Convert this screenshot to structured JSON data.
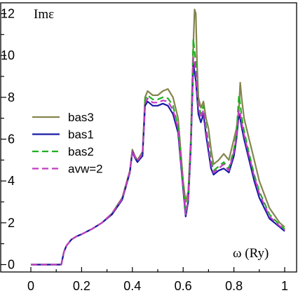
{
  "chart_data": {
    "type": "line",
    "title": "",
    "ylabel": "Imε",
    "xlabel": "ω (Ry)",
    "xlim": [
      0,
      1
    ],
    "ylim": [
      0,
      12
    ],
    "xticks": [
      "0",
      "0.2",
      "0.4",
      "0.6",
      "0.8",
      "1"
    ],
    "yticks": [
      "0",
      "2",
      "4",
      "6",
      "8",
      "10",
      "12"
    ],
    "grid": false,
    "legend_position": "left-middle",
    "series": [
      {
        "name": "bas3",
        "color": "#84844e",
        "dash": "solid",
        "x": [
          0.0,
          0.12,
          0.13,
          0.14,
          0.16,
          0.18,
          0.2,
          0.24,
          0.28,
          0.32,
          0.36,
          0.39,
          0.4,
          0.41,
          0.42,
          0.44,
          0.45,
          0.46,
          0.48,
          0.5,
          0.52,
          0.54,
          0.56,
          0.58,
          0.6,
          0.61,
          0.62,
          0.63,
          0.64,
          0.645,
          0.65,
          0.655,
          0.66,
          0.67,
          0.68,
          0.69,
          0.7,
          0.71,
          0.72,
          0.74,
          0.76,
          0.78,
          0.8,
          0.81,
          0.82,
          0.825,
          0.83,
          0.84,
          0.86,
          0.88,
          0.9,
          0.94,
          0.98,
          1.0
        ],
        "y": [
          0.0,
          0.0,
          0.6,
          0.9,
          1.2,
          1.35,
          1.45,
          1.7,
          2.0,
          2.45,
          3.2,
          4.5,
          5.5,
          5.2,
          5.0,
          5.4,
          8.0,
          8.3,
          8.1,
          8.1,
          8.3,
          8.4,
          8.0,
          7.0,
          4.0,
          3.0,
          3.5,
          6.0,
          10.5,
          12.2,
          12.0,
          9.5,
          8.0,
          7.5,
          7.8,
          7.0,
          6.5,
          5.5,
          4.8,
          5.0,
          5.3,
          5.0,
          6.0,
          6.5,
          7.5,
          8.7,
          8.0,
          7.0,
          6.0,
          5.0,
          4.0,
          2.7,
          2.0,
          1.8
        ]
      },
      {
        "name": "bas1",
        "color": "#1a1aa6",
        "dash": "solid",
        "x": [
          0.0,
          0.12,
          0.13,
          0.14,
          0.16,
          0.18,
          0.2,
          0.24,
          0.28,
          0.32,
          0.36,
          0.39,
          0.4,
          0.41,
          0.42,
          0.44,
          0.45,
          0.46,
          0.48,
          0.5,
          0.52,
          0.54,
          0.56,
          0.58,
          0.6,
          0.61,
          0.62,
          0.63,
          0.64,
          0.645,
          0.65,
          0.655,
          0.66,
          0.67,
          0.68,
          0.69,
          0.7,
          0.71,
          0.72,
          0.74,
          0.76,
          0.78,
          0.8,
          0.81,
          0.82,
          0.825,
          0.83,
          0.84,
          0.86,
          0.88,
          0.9,
          0.94,
          0.98,
          1.0
        ],
        "y": [
          0.0,
          0.0,
          0.6,
          0.9,
          1.2,
          1.35,
          1.45,
          1.7,
          2.0,
          2.4,
          3.1,
          4.4,
          5.4,
          5.1,
          4.9,
          5.2,
          7.6,
          7.8,
          7.6,
          7.6,
          7.7,
          7.6,
          7.2,
          6.3,
          3.6,
          2.3,
          3.0,
          5.5,
          9.6,
          9.2,
          8.8,
          8.0,
          7.2,
          6.8,
          7.2,
          6.2,
          5.4,
          4.6,
          4.3,
          4.5,
          4.6,
          4.4,
          5.2,
          6.0,
          7.2,
          7.0,
          6.6,
          6.0,
          5.0,
          4.0,
          3.2,
          2.2,
          1.8,
          1.6
        ]
      },
      {
        "name": "bas2",
        "color": "#1fb01f",
        "dash": "9,5",
        "x": [
          0.0,
          0.12,
          0.13,
          0.14,
          0.16,
          0.18,
          0.2,
          0.24,
          0.28,
          0.32,
          0.36,
          0.39,
          0.4,
          0.41,
          0.42,
          0.44,
          0.45,
          0.46,
          0.48,
          0.5,
          0.52,
          0.54,
          0.56,
          0.58,
          0.6,
          0.61,
          0.62,
          0.63,
          0.64,
          0.645,
          0.65,
          0.655,
          0.66,
          0.67,
          0.68,
          0.69,
          0.7,
          0.71,
          0.72,
          0.74,
          0.76,
          0.78,
          0.8,
          0.81,
          0.82,
          0.825,
          0.83,
          0.84,
          0.86,
          0.88,
          0.9,
          0.94,
          0.98,
          1.0
        ],
        "y": [
          0.0,
          0.0,
          0.6,
          0.9,
          1.2,
          1.35,
          1.45,
          1.7,
          2.0,
          2.45,
          3.15,
          4.45,
          5.45,
          5.15,
          4.95,
          5.3,
          7.9,
          8.1,
          7.9,
          7.9,
          8.0,
          7.95,
          7.6,
          6.6,
          3.8,
          2.5,
          3.2,
          5.8,
          10.8,
          10.2,
          9.6,
          8.6,
          7.7,
          7.2,
          7.6,
          6.6,
          5.8,
          5.0,
          4.5,
          4.7,
          4.9,
          4.6,
          5.5,
          6.3,
          8.1,
          7.7,
          7.1,
          6.4,
          5.3,
          4.3,
          3.5,
          2.4,
          1.9,
          1.7
        ]
      },
      {
        "name": "avw=2",
        "color": "#c23bc2",
        "dash": "9,5",
        "x": [
          0.0,
          0.12,
          0.13,
          0.14,
          0.16,
          0.18,
          0.2,
          0.24,
          0.28,
          0.32,
          0.36,
          0.39,
          0.4,
          0.41,
          0.42,
          0.44,
          0.45,
          0.46,
          0.48,
          0.5,
          0.52,
          0.54,
          0.56,
          0.58,
          0.6,
          0.61,
          0.62,
          0.63,
          0.64,
          0.645,
          0.65,
          0.655,
          0.66,
          0.67,
          0.68,
          0.69,
          0.7,
          0.71,
          0.72,
          0.74,
          0.76,
          0.78,
          0.8,
          0.81,
          0.82,
          0.825,
          0.83,
          0.84,
          0.86,
          0.88,
          0.9,
          0.94,
          0.98,
          1.0
        ],
        "y": [
          0.0,
          0.0,
          0.6,
          0.9,
          1.2,
          1.35,
          1.45,
          1.7,
          2.0,
          2.45,
          3.15,
          4.45,
          5.45,
          5.15,
          4.95,
          5.3,
          7.7,
          7.95,
          7.75,
          7.75,
          7.85,
          7.8,
          7.4,
          6.5,
          3.7,
          2.4,
          3.1,
          5.6,
          9.9,
          9.6,
          9.2,
          8.3,
          7.5,
          7.0,
          7.4,
          6.4,
          5.6,
          4.8,
          4.4,
          4.6,
          4.8,
          4.5,
          5.4,
          6.1,
          7.4,
          7.2,
          6.8,
          6.2,
          5.2,
          4.2,
          3.4,
          2.3,
          1.85,
          1.65
        ]
      }
    ]
  }
}
